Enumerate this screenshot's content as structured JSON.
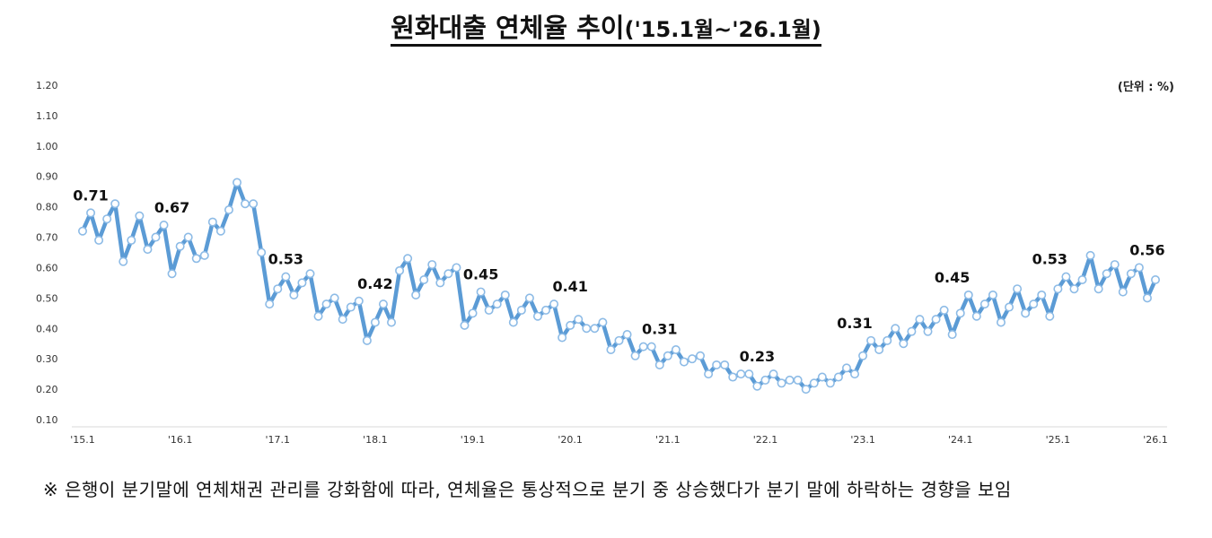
{
  "title": "원화대출 연체율 추이",
  "title_period": "('15.1월~'26.1월)",
  "unit": "(단위 : %)",
  "note": "※ 은행이 분기말에 연체채권 관리를 강화함에 따라, 연체율은 통상적으로 분기 중 상승했다가 분기 말에 하락하는 경향을 보임",
  "colors": {
    "line": "#5b9bd5",
    "marker_fill": "#ffffff"
  },
  "chart_data": {
    "type": "line",
    "title": "원화대출 연체율 추이('15.1월~'26.1월)",
    "xlabel": "",
    "ylabel": "(단위 : %)",
    "ylim": [
      0.1,
      1.2
    ],
    "yticks": [
      "0.10",
      "0.20",
      "0.30",
      "0.40",
      "0.50",
      "0.60",
      "0.70",
      "0.80",
      "0.90",
      "1.00",
      "1.10",
      "1.20"
    ],
    "xticks": [
      {
        "label": "'15.1",
        "index": 0
      },
      {
        "label": "'16.1",
        "index": 12
      },
      {
        "label": "'17.1",
        "index": 24
      },
      {
        "label": "'18.1",
        "index": 36
      },
      {
        "label": "'19.1",
        "index": 48
      },
      {
        "label": "'20.1",
        "index": 60
      },
      {
        "label": "'21.1",
        "index": 72
      },
      {
        "label": "'22.1",
        "index": 84
      },
      {
        "label": "'23.1",
        "index": 96
      },
      {
        "label": "'24.1",
        "index": 108
      },
      {
        "label": "'25.1",
        "index": 120
      },
      {
        "label": "'26.1",
        "index": 132
      }
    ],
    "grid": false,
    "series": [
      {
        "name": "원화대출 연체율",
        "start": "2015-01",
        "frequency": "monthly",
        "values": [
          0.72,
          0.78,
          0.69,
          0.76,
          0.81,
          0.62,
          0.69,
          0.77,
          0.66,
          0.7,
          0.74,
          0.58,
          0.67,
          0.7,
          0.63,
          0.64,
          0.75,
          0.72,
          0.79,
          0.88,
          0.81,
          0.81,
          0.65,
          0.48,
          0.53,
          0.57,
          0.51,
          0.55,
          0.58,
          0.44,
          0.48,
          0.5,
          0.43,
          0.47,
          0.49,
          0.36,
          0.42,
          0.48,
          0.42,
          0.59,
          0.63,
          0.51,
          0.56,
          0.61,
          0.55,
          0.58,
          0.6,
          0.41,
          0.45,
          0.52,
          0.46,
          0.48,
          0.51,
          0.42,
          0.46,
          0.5,
          0.44,
          0.46,
          0.48,
          0.37,
          0.41,
          0.43,
          0.4,
          0.4,
          0.42,
          0.33,
          0.36,
          0.38,
          0.31,
          0.34,
          0.34,
          0.28,
          0.31,
          0.33,
          0.29,
          0.3,
          0.31,
          0.25,
          0.28,
          0.28,
          0.24,
          0.25,
          0.25,
          0.21,
          0.23,
          0.25,
          0.22,
          0.23,
          0.23,
          0.2,
          0.22,
          0.24,
          0.22,
          0.24,
          0.27,
          0.25,
          0.31,
          0.36,
          0.33,
          0.36,
          0.4,
          0.35,
          0.39,
          0.43,
          0.39,
          0.43,
          0.46,
          0.38,
          0.45,
          0.51,
          0.44,
          0.48,
          0.51,
          0.42,
          0.47,
          0.53,
          0.45,
          0.48,
          0.51,
          0.44,
          0.53,
          0.57,
          0.53,
          0.56,
          0.64,
          0.53,
          0.58,
          0.61,
          0.52,
          0.58,
          0.6,
          0.5,
          0.56
        ]
      }
    ],
    "annotations": [
      {
        "text": "0.71",
        "index": 1
      },
      {
        "text": "0.67",
        "index": 11
      },
      {
        "text": "0.53",
        "index": 25
      },
      {
        "text": "0.42",
        "index": 36
      },
      {
        "text": "0.45",
        "index": 49
      },
      {
        "text": "0.41",
        "index": 60
      },
      {
        "text": "0.31",
        "index": 71
      },
      {
        "text": "0.23",
        "index": 83
      },
      {
        "text": "0.31",
        "index": 95
      },
      {
        "text": "0.45",
        "index": 107
      },
      {
        "text": "0.53",
        "index": 119
      },
      {
        "text": "0.56",
        "index": 131
      }
    ]
  }
}
